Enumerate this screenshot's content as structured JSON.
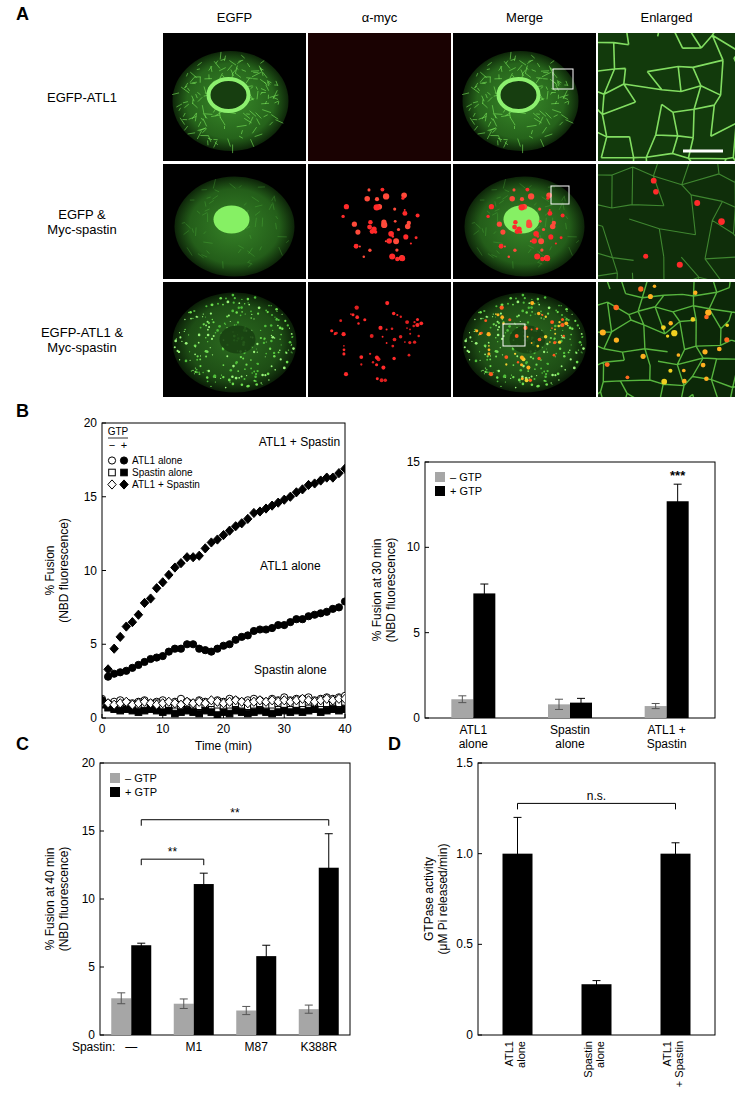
{
  "panel_a": {
    "label": "A",
    "columns": [
      "EGFP",
      "α-myc",
      "Merge",
      "Enlarged"
    ],
    "rows": [
      "EGFP-ATL1",
      "EGFP &\nMyc-spastin",
      "EGFP-ATL1 &\nMyc-spastin"
    ]
  },
  "chart_data": [
    {
      "panel": "B",
      "type": "scatter",
      "x": [
        0,
        1,
        2,
        3,
        4,
        5,
        6,
        7,
        8,
        9,
        10,
        11,
        12,
        13,
        14,
        15,
        16,
        17,
        18,
        19,
        20,
        21,
        22,
        23,
        24,
        25,
        26,
        27,
        28,
        29,
        30,
        31,
        32,
        33,
        34,
        35,
        36,
        37,
        38,
        39,
        40
      ],
      "xlim": [
        0,
        40
      ],
      "xticks": [
        0,
        10,
        20,
        30,
        40
      ],
      "ylim": [
        0,
        20
      ],
      "yticks": [
        0,
        5,
        10,
        15,
        20
      ],
      "xlabel": "Time (min)",
      "ylabel": "% Fusion\n(NBD fluorescence)",
      "legend": "upper left",
      "legend_title": "GTP",
      "legend_columns": [
        "−",
        "+"
      ],
      "series": [
        {
          "name": "ATL1 alone",
          "color": "#000000",
          "marker": "open-circle",
          "values": [
            1.3,
            1.0,
            1.1,
            1.2,
            0.9,
            1.0,
            1.1,
            1.2,
            1.0,
            1.1,
            1.2,
            1.0,
            1.1,
            1.3,
            1.1,
            1.0,
            1.2,
            1.1,
            1.0,
            1.2,
            1.1,
            1.3,
            1.2,
            1.1,
            1.2,
            1.3,
            1.2,
            1.1,
            1.3,
            1.2,
            1.4,
            1.2,
            1.3,
            1.3,
            1.4,
            1.2,
            1.3,
            1.4,
            1.3,
            1.4,
            1.5
          ]
        },
        {
          "name": "ATL1 alone",
          "color": "#000000",
          "marker": "circle",
          "values": [
            1.2,
            2.8,
            3.0,
            3.1,
            3.2,
            3.4,
            3.6,
            3.8,
            4.0,
            4.1,
            4.2,
            4.5,
            4.7,
            4.7,
            5.0,
            5.0,
            4.7,
            4.6,
            4.5,
            4.7,
            4.9,
            5.0,
            5.3,
            5.5,
            5.6,
            5.9,
            6.0,
            6.0,
            6.1,
            6.3,
            6.3,
            6.5,
            6.7,
            6.7,
            6.9,
            7.0,
            7.1,
            7.2,
            7.4,
            7.5,
            7.9
          ]
        },
        {
          "name": "Spastin alone",
          "color": "#000000",
          "marker": "open-square",
          "values": [
            1.0,
            0.9,
            0.8,
            0.9,
            1.0,
            0.8,
            0.9,
            0.8,
            0.9,
            1.0,
            0.8,
            0.9,
            0.9,
            0.8,
            1.0,
            0.9,
            0.8,
            0.9,
            1.0,
            0.9,
            0.8,
            0.9,
            1.0,
            0.9,
            0.8,
            0.9,
            1.0,
            0.9,
            0.9,
            1.0,
            0.9,
            1.0,
            0.9,
            1.0,
            1.1,
            0.9,
            1.0,
            1.0,
            1.1,
            1.0,
            1.1
          ]
        },
        {
          "name": "Spastin alone",
          "color": "#000000",
          "marker": "square",
          "values": [
            0.9,
            0.7,
            0.6,
            0.5,
            0.6,
            0.5,
            0.4,
            0.5,
            0.6,
            0.5,
            0.4,
            0.5,
            0.3,
            0.4,
            0.5,
            0.4,
            0.3,
            0.5,
            0.4,
            0.2,
            0.4,
            0.3,
            0.5,
            0.4,
            0.3,
            0.4,
            0.5,
            0.4,
            0.3,
            0.4,
            0.5,
            0.4,
            0.5,
            0.4,
            0.5,
            0.6,
            0.4,
            0.5,
            0.6,
            0.5,
            0.6
          ]
        },
        {
          "name": "ATL1 + Spastin",
          "color": "#000000",
          "marker": "open-diamond",
          "values": [
            1.1,
            1.0,
            0.9,
            1.0,
            1.1,
            0.9,
            1.0,
            1.1,
            1.0,
            0.9,
            1.0,
            1.1,
            1.0,
            0.9,
            1.1,
            1.0,
            1.1,
            1.0,
            1.2,
            1.1,
            1.0,
            1.1,
            1.2,
            1.1,
            1.0,
            1.1,
            1.2,
            1.1,
            1.2,
            1.1,
            1.2,
            1.1,
            1.2,
            1.3,
            1.2,
            1.1,
            1.2,
            1.3,
            1.2,
            1.3,
            1.3
          ]
        },
        {
          "name": "ATL1 + Spastin",
          "color": "#000000",
          "marker": "diamond",
          "values": [
            1.2,
            3.3,
            4.7,
            5.5,
            6.2,
            6.5,
            7.0,
            7.8,
            8.1,
            8.8,
            9.2,
            9.7,
            10.2,
            10.5,
            10.9,
            10.9,
            11.0,
            11.5,
            11.9,
            12.1,
            12.4,
            12.7,
            13.0,
            13.2,
            13.5,
            13.9,
            14.0,
            14.2,
            14.4,
            14.6,
            14.8,
            15.0,
            15.3,
            15.5,
            15.8,
            15.9,
            16.1,
            16.3,
            16.3,
            16.6,
            16.9
          ]
        }
      ],
      "annotations": [
        {
          "text": "ATL1 + Spastin",
          "x": 32.5,
          "y": 18.7
        },
        {
          "text": "ATL1 alone",
          "x": 31,
          "y": 10.3
        },
        {
          "text": "Spastin alone",
          "x": 31,
          "y": 3.3
        }
      ]
    },
    {
      "type": "bar",
      "categories": [
        "ATL1\nalone",
        "Spastin\nalone",
        "ATL1 +\nSpastin"
      ],
      "ylim": [
        0,
        15
      ],
      "yticks": [
        0,
        5,
        10,
        15
      ],
      "ylabel": "% Fusion at 30 min\n(NBD fluorescence)",
      "legend": "upper left",
      "series": [
        {
          "name": "– GTP",
          "color": "#a6a6a6",
          "values": [
            1.1,
            0.8,
            0.7
          ],
          "errors": [
            0.2,
            0.3,
            0.15
          ]
        },
        {
          "name": "+ GTP",
          "color": "#000000",
          "values": [
            7.3,
            0.9,
            12.7
          ],
          "errors": [
            0.55,
            0.25,
            1.0
          ]
        }
      ],
      "annotations": [
        {
          "text": "***",
          "category": 2,
          "series": 1
        }
      ]
    },
    {
      "panel": "C",
      "type": "bar",
      "xlabel": "Spastin:",
      "categories": [
        "—",
        "M1",
        "M87",
        "K388R"
      ],
      "ylim": [
        0,
        20
      ],
      "yticks": [
        0,
        5,
        10,
        15,
        20
      ],
      "ylabel": "% Fusion at 40 min\n(NBD fluorescence)",
      "legend": "upper left",
      "series": [
        {
          "name": "– GTP",
          "color": "#a6a6a6",
          "values": [
            2.7,
            2.3,
            1.8,
            1.9
          ],
          "errors": [
            0.4,
            0.35,
            0.3,
            0.3
          ]
        },
        {
          "name": "+ GTP",
          "color": "#000000",
          "values": [
            6.6,
            11.1,
            5.8,
            12.3
          ],
          "errors": [
            0.15,
            0.8,
            0.8,
            2.5
          ]
        }
      ],
      "annotations": [
        {
          "text": "**",
          "from": 0,
          "to": 1,
          "series": 1
        },
        {
          "text": "**",
          "from": 0,
          "to": 3,
          "series": 1
        }
      ]
    },
    {
      "panel": "D",
      "type": "bar",
      "categories": [
        "ATL1\nalone",
        "Spastin\nalone",
        "ATL1\n+ Spastin"
      ],
      "ylim": [
        0,
        1.5
      ],
      "yticks": [
        0,
        0.5,
        {
          "value": 1,
          "label": "1.0"
        },
        1.5
      ],
      "ylabel": "GTPase activity\n(μM Pi released/min)",
      "color": "#000000",
      "values": [
        1.0,
        0.28,
        1.0
      ],
      "errors": [
        0.2,
        0.02,
        0.06
      ],
      "annotations": [
        {
          "text": "n.s.",
          "from": 0,
          "to": 2
        }
      ]
    }
  ]
}
